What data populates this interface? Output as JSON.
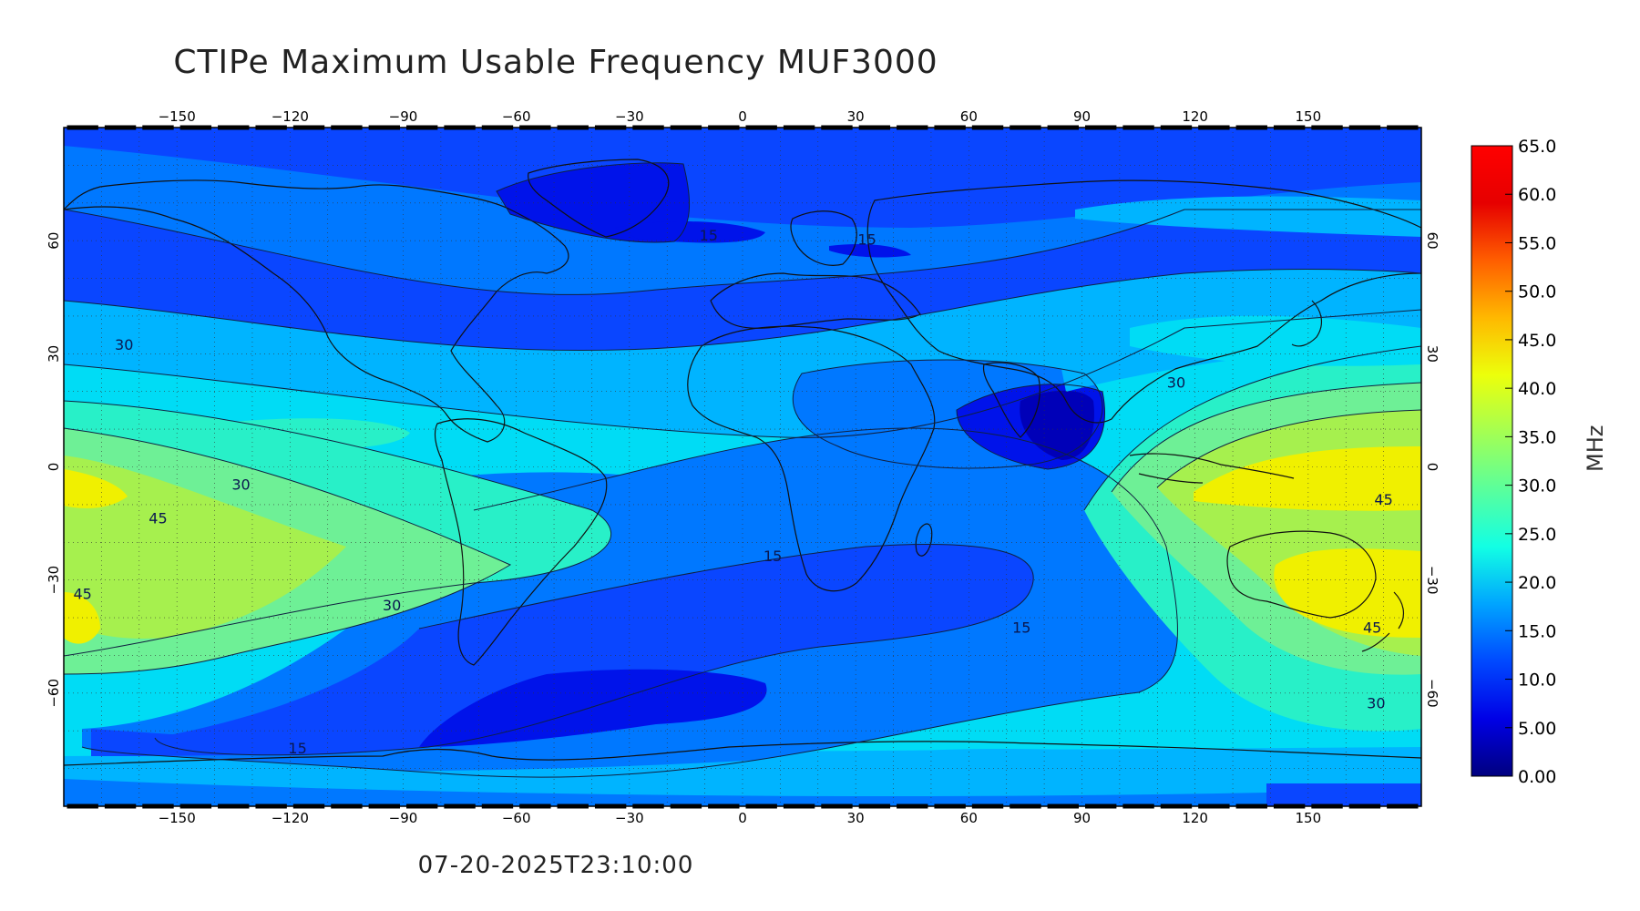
{
  "title": "CTIPe Maximum Usable Frequency MUF3000",
  "timestamp": "07-20-2025T23:10:00",
  "colorbar": {
    "unit": "MHz",
    "ticks": [
      "65.0",
      "60.0",
      "55.0",
      "50.0",
      "45.0",
      "40.0",
      "35.0",
      "30.0",
      "25.0",
      "20.0",
      "15.0",
      "10.0",
      "5.00",
      "0.00"
    ],
    "min": 0,
    "max": 65,
    "gradient": [
      "#00007f",
      "#0000e6",
      "#0049ff",
      "#00a4ff",
      "#12ffe4",
      "#5aff9c",
      "#a4ff53",
      "#ecff0b",
      "#ffb800",
      "#ff5e00",
      "#e60000",
      "#ff0000"
    ]
  },
  "axes": {
    "lon_ticks": [
      "-150",
      "-120",
      "-90",
      "-60",
      "-30",
      "0",
      "30",
      "60",
      "90",
      "120",
      "150"
    ],
    "lat_ticks": [
      "60",
      "30",
      "0",
      "-30",
      "-60"
    ],
    "lon_range": [
      -180,
      180
    ],
    "lat_range": [
      -90,
      90
    ]
  },
  "contour_labels": [
    {
      "text": "30",
      "lon": -164,
      "lat": 31
    },
    {
      "text": "30",
      "lon": -133,
      "lat": -6
    },
    {
      "text": "45",
      "lon": -155,
      "lat": -15
    },
    {
      "text": "45",
      "lon": -175,
      "lat": -35
    },
    {
      "text": "30",
      "lon": -93,
      "lat": -38
    },
    {
      "text": "15",
      "lon": 8,
      "lat": -25
    },
    {
      "text": "15",
      "lon": 33,
      "lat": 59
    },
    {
      "text": "15",
      "lon": -9,
      "lat": 60
    },
    {
      "text": "15",
      "lon": 74,
      "lat": -44
    },
    {
      "text": "30",
      "lon": 115,
      "lat": 21
    },
    {
      "text": "45",
      "lon": 170,
      "lat": -10
    },
    {
      "text": "45",
      "lon": 167,
      "lat": -44
    },
    {
      "text": "30",
      "lon": 168,
      "lat": -64
    },
    {
      "text": "15",
      "lon": -118,
      "lat": -76
    }
  ],
  "legend_palette": {
    "band_0": "#0000b8",
    "band_5": "#0013ea",
    "band_10": "#0a46ff",
    "band_15": "#0078ff",
    "band_20": "#00b4ff",
    "band_25": "#00dcf5",
    "band_30": "#28f0c8",
    "band_35": "#6ef096",
    "band_40": "#a6f04e",
    "band_45": "#f0f000"
  }
}
